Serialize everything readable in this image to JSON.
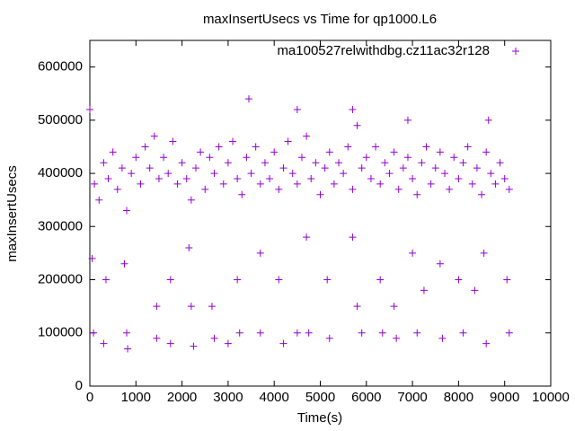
{
  "chart_data": {
    "type": "scatter",
    "title": "maxInsertUsecs vs Time for qp1000.L6",
    "x_label": "Time(s)",
    "y_label": "maxInsertUsecs",
    "xlim": [
      0,
      10000
    ],
    "xticks": [
      0,
      1000,
      2000,
      3000,
      4000,
      5000,
      6000,
      7000,
      8000,
      9000,
      10000
    ],
    "ylim": [
      0,
      650000
    ],
    "yticks": [
      0,
      100000,
      200000,
      300000,
      400000,
      500000,
      600000
    ],
    "grid": false,
    "legend": "top-right",
    "series": [
      {
        "name": "ma100527relwithdbg.cz11ac32r128",
        "color": "#9400d3",
        "x": [
          0,
          100,
          200,
          300,
          400,
          500,
          600,
          700,
          800,
          900,
          1000,
          1100,
          1200,
          1300,
          1400,
          1500,
          1600,
          1700,
          1800,
          1900,
          2000,
          2100,
          2200,
          2300,
          2400,
          2500,
          2600,
          2700,
          2800,
          2900,
          3000,
          3100,
          3200,
          3300,
          3400,
          3500,
          3600,
          3700,
          3800,
          3900,
          4000,
          4100,
          4200,
          4300,
          4400,
          4500,
          4600,
          4700,
          4800,
          4900,
          5000,
          5100,
          5200,
          5300,
          5400,
          5500,
          5600,
          5700,
          5800,
          5900,
          6000,
          6100,
          6200,
          6300,
          6400,
          6500,
          6600,
          6700,
          6800,
          6900,
          7000,
          7100,
          7200,
          7300,
          7400,
          7500,
          7600,
          7700,
          7800,
          7900,
          8000,
          8100,
          8200,
          8300,
          8400,
          8500,
          8600,
          8700,
          8800,
          8900,
          9000,
          9100,
          3450,
          4500,
          5700,
          6900,
          8650,
          50,
          80,
          300,
          350,
          750,
          800,
          820,
          1450,
          1450,
          1750,
          1750,
          2150,
          2200,
          2250,
          2650,
          2700,
          3000,
          3200,
          3250,
          3700,
          3700,
          4100,
          4200,
          4500,
          4700,
          4750,
          5150,
          5200,
          5700,
          5800,
          5900,
          6300,
          6350,
          6600,
          6650,
          7000,
          7100,
          7250,
          7600,
          7650,
          8000,
          8100,
          8350,
          8550,
          8600,
          9050,
          9100
        ],
        "y": [
          520000,
          380000,
          350000,
          420000,
          390000,
          440000,
          370000,
          410000,
          330000,
          400000,
          430000,
          380000,
          450000,
          410000,
          470000,
          390000,
          430000,
          400000,
          460000,
          380000,
          420000,
          390000,
          350000,
          410000,
          440000,
          370000,
          430000,
          400000,
          450000,
          380000,
          420000,
          460000,
          390000,
          360000,
          430000,
          400000,
          450000,
          380000,
          420000,
          390000,
          440000,
          370000,
          410000,
          460000,
          400000,
          380000,
          430000,
          470000,
          390000,
          420000,
          360000,
          410000,
          440000,
          380000,
          420000,
          400000,
          450000,
          370000,
          490000,
          410000,
          430000,
          390000,
          450000,
          380000,
          420000,
          400000,
          440000,
          370000,
          410000,
          430000,
          390000,
          360000,
          420000,
          450000,
          380000,
          410000,
          440000,
          400000,
          370000,
          430000,
          390000,
          420000,
          450000,
          380000,
          410000,
          360000,
          440000,
          400000,
          380000,
          420000,
          390000,
          370000,
          540000,
          520000,
          520000,
          500000,
          500000,
          240000,
          100000,
          80000,
          200000,
          230000,
          100000,
          70000,
          150000,
          90000,
          200000,
          80000,
          260000,
          150000,
          75000,
          150000,
          90000,
          80000,
          200000,
          100000,
          250000,
          100000,
          200000,
          80000,
          100000,
          280000,
          100000,
          200000,
          90000,
          280000,
          150000,
          100000,
          200000,
          100000,
          150000,
          90000,
          250000,
          100000,
          180000,
          230000,
          90000,
          200000,
          100000,
          180000,
          250000,
          80000,
          200000,
          100000
        ]
      }
    ]
  }
}
